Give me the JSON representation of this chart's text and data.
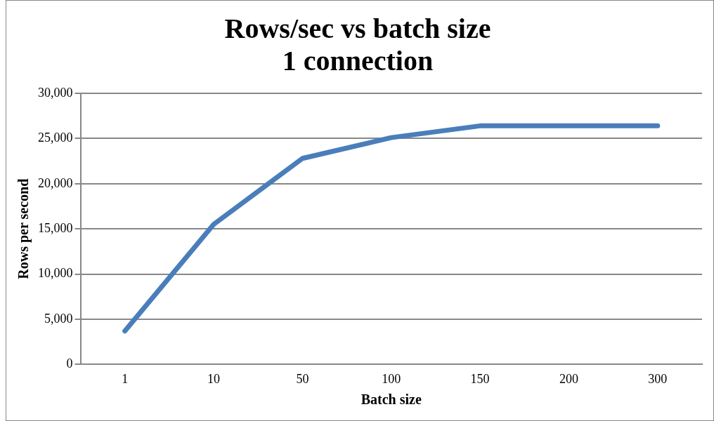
{
  "chart_data": {
    "type": "line",
    "title": "Rows/sec vs batch size\n1 connection",
    "xlabel": "Batch size",
    "ylabel": "Rows per second",
    "categories": [
      "1",
      "10",
      "50",
      "100",
      "150",
      "200",
      "300"
    ],
    "series": [
      {
        "color": "#4a7ebb",
        "values": [
          3700,
          15500,
          22800,
          25100,
          26400,
          26400,
          26400
        ]
      }
    ],
    "ylim": [
      0,
      30000
    ],
    "yticks": [
      {
        "value": 0,
        "label": "0"
      },
      {
        "value": 5000,
        "label": "5,000"
      },
      {
        "value": 10000,
        "label": "10,000"
      },
      {
        "value": 15000,
        "label": "15,000"
      },
      {
        "value": 20000,
        "label": "20,000"
      },
      {
        "value": 25000,
        "label": "25,000"
      },
      {
        "value": 30000,
        "label": "30,000"
      }
    ],
    "grid": "y",
    "legend": false,
    "marker": "none",
    "line_style": "solid"
  }
}
